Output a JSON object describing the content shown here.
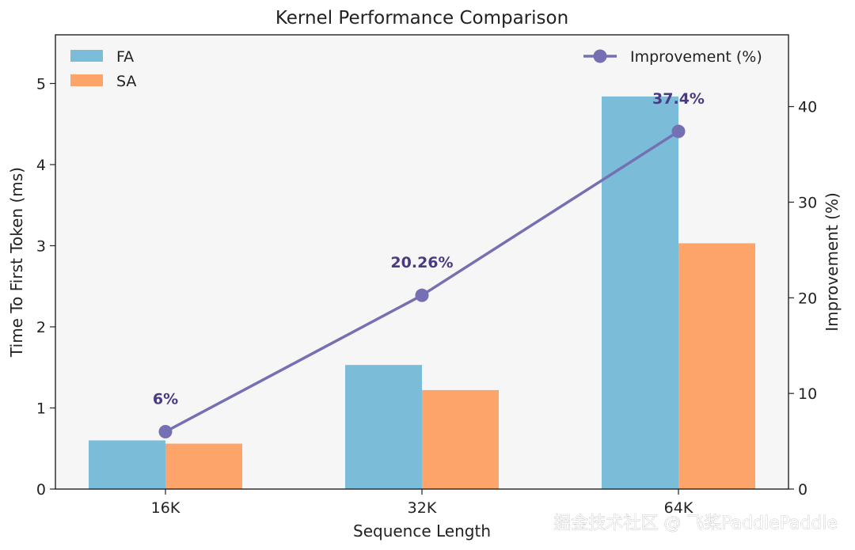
{
  "chart_data": {
    "type": "bar",
    "title": "Kernel Performance Comparison",
    "xlabel": "Sequence Length",
    "ylabel": "Time To First Token (ms)",
    "ylabel_right": "Improvement (%)",
    "categories": [
      "16K",
      "32K",
      "64K"
    ],
    "ylim": [
      0,
      5.6
    ],
    "ylim_right": [
      0,
      47.5
    ],
    "yticks": [
      "0",
      "1",
      "2",
      "3",
      "4",
      "5"
    ],
    "yticks_right": [
      "0",
      "10",
      "20",
      "30",
      "40"
    ],
    "series": [
      {
        "name": "FA",
        "type": "bar",
        "color": "#7bbcd9",
        "values": [
          0.6,
          1.53,
          4.84
        ]
      },
      {
        "name": "SA",
        "type": "bar",
        "color": "#fda46a",
        "values": [
          0.56,
          1.22,
          3.03
        ]
      },
      {
        "name": "Improvement (%)",
        "type": "line",
        "axis": "right",
        "color": "#7570b3",
        "values": [
          6,
          20.26,
          37.4
        ],
        "labels": [
          "6%",
          "20.26%",
          "37.4%"
        ]
      }
    ],
    "legend": {
      "left_position": "top-left",
      "right_position": "top-right"
    },
    "grid": false
  },
  "watermark": "掘金技术社区 @ 飞桨PaddlePaddle"
}
